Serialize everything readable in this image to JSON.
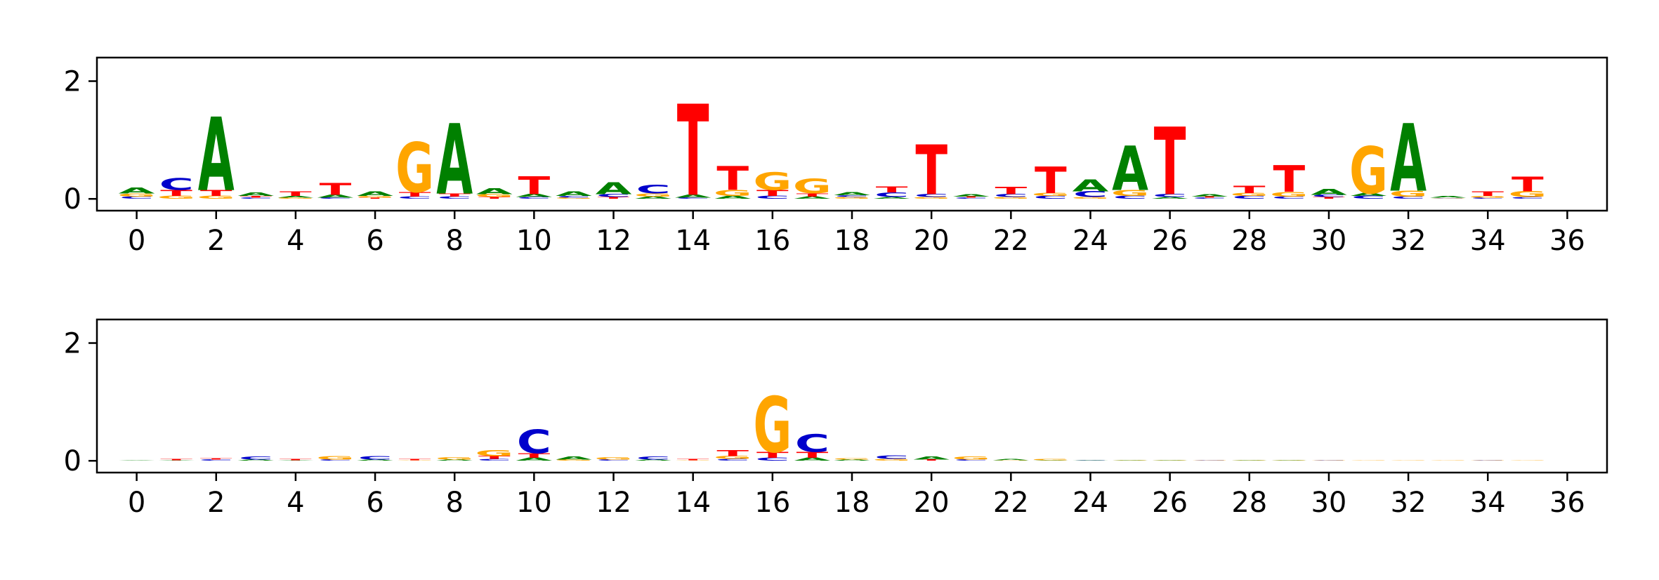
{
  "colors": {
    "A": "#008000",
    "C": "#0000cc",
    "G": "#ffa500",
    "T": "#ff0000"
  },
  "chart_data": [
    {
      "type": "sequence-logo",
      "xlim": [
        -1,
        37
      ],
      "ylim": [
        -0.2,
        2.4
      ],
      "xticks": [
        0,
        2,
        4,
        6,
        8,
        10,
        12,
        14,
        16,
        18,
        20,
        22,
        24,
        26,
        28,
        30,
        32,
        34,
        36
      ],
      "xtick_labels": [
        "0",
        "2",
        "4",
        "6",
        "8",
        "10",
        "12",
        "14",
        "16",
        "18",
        "20",
        "22",
        "24",
        "26",
        "28",
        "30",
        "32",
        "34",
        "36"
      ],
      "yticks": [
        0,
        2
      ],
      "ytick_labels": [
        "0",
        "2"
      ],
      "positions": [
        {
          "x": 0,
          "stack": [
            [
              "C",
              0.04
            ],
            [
              "G",
              0.05
            ],
            [
              "A",
              0.1
            ]
          ]
        },
        {
          "x": 1,
          "stack": [
            [
              "G",
              0.05
            ],
            [
              "T",
              0.1
            ],
            [
              "C",
              0.2
            ]
          ]
        },
        {
          "x": 2,
          "stack": [
            [
              "G",
              0.05
            ],
            [
              "T",
              0.1
            ],
            [
              "A",
              1.25
            ]
          ]
        },
        {
          "x": 3,
          "stack": [
            [
              "C",
              0.02
            ],
            [
              "T",
              0.03
            ],
            [
              "A",
              0.06
            ]
          ]
        },
        {
          "x": 4,
          "stack": [
            [
              "G",
              0.02
            ],
            [
              "A",
              0.03
            ],
            [
              "T",
              0.08
            ]
          ]
        },
        {
          "x": 5,
          "stack": [
            [
              "C",
              0.02
            ],
            [
              "A",
              0.05
            ],
            [
              "T",
              0.2
            ]
          ]
        },
        {
          "x": 6,
          "stack": [
            [
              "T",
              0.02
            ],
            [
              "G",
              0.03
            ],
            [
              "A",
              0.08
            ]
          ]
        },
        {
          "x": 7,
          "stack": [
            [
              "C",
              0.04
            ],
            [
              "T",
              0.08
            ],
            [
              "G",
              0.85
            ]
          ]
        },
        {
          "x": 8,
          "stack": [
            [
              "C",
              0.04
            ],
            [
              "T",
              0.05
            ],
            [
              "A",
              1.2
            ]
          ]
        },
        {
          "x": 9,
          "stack": [
            [
              "T",
              0.03
            ],
            [
              "G",
              0.05
            ],
            [
              "A",
              0.1
            ]
          ]
        },
        {
          "x": 10,
          "stack": [
            [
              "C",
              0.03
            ],
            [
              "A",
              0.05
            ],
            [
              "T",
              0.3
            ]
          ]
        },
        {
          "x": 11,
          "stack": [
            [
              "G",
              0.02
            ],
            [
              "C",
              0.03
            ],
            [
              "A",
              0.08
            ]
          ]
        },
        {
          "x": 12,
          "stack": [
            [
              "T",
              0.03
            ],
            [
              "C",
              0.05
            ],
            [
              "A",
              0.2
            ]
          ]
        },
        {
          "x": 13,
          "stack": [
            [
              "A",
              0.04
            ],
            [
              "G",
              0.05
            ],
            [
              "C",
              0.15
            ]
          ]
        },
        {
          "x": 14,
          "stack": [
            [
              "C",
              0.02
            ],
            [
              "A",
              0.05
            ],
            [
              "T",
              1.55
            ]
          ]
        },
        {
          "x": 15,
          "stack": [
            [
              "A",
              0.05
            ],
            [
              "G",
              0.1
            ],
            [
              "T",
              0.4
            ]
          ]
        },
        {
          "x": 16,
          "stack": [
            [
              "C",
              0.05
            ],
            [
              "T",
              0.1
            ],
            [
              "G",
              0.3
            ]
          ]
        },
        {
          "x": 17,
          "stack": [
            [
              "A",
              0.04
            ],
            [
              "T",
              0.05
            ],
            [
              "G",
              0.25
            ]
          ]
        },
        {
          "x": 18,
          "stack": [
            [
              "G",
              0.03
            ],
            [
              "C",
              0.03
            ],
            [
              "A",
              0.05
            ]
          ]
        },
        {
          "x": 19,
          "stack": [
            [
              "A",
              0.03
            ],
            [
              "C",
              0.08
            ],
            [
              "T",
              0.1
            ]
          ]
        },
        {
          "x": 20,
          "stack": [
            [
              "G",
              0.03
            ],
            [
              "C",
              0.05
            ],
            [
              "T",
              0.85
            ]
          ]
        },
        {
          "x": 21,
          "stack": [
            [
              "C",
              0.02
            ],
            [
              "T",
              0.02
            ],
            [
              "A",
              0.04
            ]
          ]
        },
        {
          "x": 22,
          "stack": [
            [
              "G",
              0.03
            ],
            [
              "C",
              0.05
            ],
            [
              "T",
              0.12
            ]
          ]
        },
        {
          "x": 23,
          "stack": [
            [
              "C",
              0.05
            ],
            [
              "G",
              0.05
            ],
            [
              "T",
              0.45
            ]
          ]
        },
        {
          "x": 24,
          "stack": [
            [
              "G",
              0.03
            ],
            [
              "C",
              0.1
            ],
            [
              "A",
              0.2
            ]
          ]
        },
        {
          "x": 25,
          "stack": [
            [
              "C",
              0.05
            ],
            [
              "G",
              0.1
            ],
            [
              "A",
              0.75
            ]
          ]
        },
        {
          "x": 26,
          "stack": [
            [
              "A",
              0.03
            ],
            [
              "C",
              0.05
            ],
            [
              "T",
              1.15
            ]
          ]
        },
        {
          "x": 27,
          "stack": [
            [
              "C",
              0.02
            ],
            [
              "T",
              0.02
            ],
            [
              "A",
              0.04
            ]
          ]
        },
        {
          "x": 28,
          "stack": [
            [
              "C",
              0.05
            ],
            [
              "G",
              0.05
            ],
            [
              "T",
              0.12
            ]
          ]
        },
        {
          "x": 29,
          "stack": [
            [
              "C",
              0.04
            ],
            [
              "G",
              0.08
            ],
            [
              "T",
              0.45
            ]
          ]
        },
        {
          "x": 30,
          "stack": [
            [
              "T",
              0.03
            ],
            [
              "C",
              0.04
            ],
            [
              "A",
              0.1
            ]
          ]
        },
        {
          "x": 31,
          "stack": [
            [
              "C",
              0.05
            ],
            [
              "A",
              0.05
            ],
            [
              "G",
              0.8
            ]
          ]
        },
        {
          "x": 32,
          "stack": [
            [
              "C",
              0.04
            ],
            [
              "G",
              0.1
            ],
            [
              "A",
              1.15
            ]
          ]
        },
        {
          "x": 33,
          "stack": [
            [
              "C",
              0.01
            ],
            [
              "G",
              0.01
            ],
            [
              "A",
              0.03
            ]
          ]
        },
        {
          "x": 34,
          "stack": [
            [
              "C",
              0.02
            ],
            [
              "G",
              0.03
            ],
            [
              "T",
              0.08
            ]
          ]
        },
        {
          "x": 35,
          "stack": [
            [
              "C",
              0.03
            ],
            [
              "G",
              0.1
            ],
            [
              "T",
              0.25
            ]
          ]
        }
      ]
    },
    {
      "type": "sequence-logo",
      "xlim": [
        -1,
        37
      ],
      "ylim": [
        -0.2,
        2.4
      ],
      "xticks": [
        0,
        2,
        4,
        6,
        8,
        10,
        12,
        14,
        16,
        18,
        20,
        22,
        24,
        26,
        28,
        30,
        32,
        34,
        36
      ],
      "xtick_labels": [
        "0",
        "2",
        "4",
        "6",
        "8",
        "10",
        "12",
        "14",
        "16",
        "18",
        "20",
        "22",
        "24",
        "26",
        "28",
        "30",
        "32",
        "34",
        "36"
      ],
      "yticks": [
        0,
        2
      ],
      "ytick_labels": [
        "0",
        "2"
      ],
      "positions": [
        {
          "x": 0,
          "stack": [
            [
              "A",
              0.01
            ]
          ]
        },
        {
          "x": 1,
          "stack": [
            [
              "A",
              0.01
            ],
            [
              "T",
              0.02
            ]
          ]
        },
        {
          "x": 2,
          "stack": [
            [
              "C",
              0.02
            ],
            [
              "T",
              0.02
            ]
          ]
        },
        {
          "x": 3,
          "stack": [
            [
              "A",
              0.02
            ],
            [
              "C",
              0.05
            ]
          ]
        },
        {
          "x": 4,
          "stack": [
            [
              "A",
              0.01
            ],
            [
              "T",
              0.02
            ]
          ]
        },
        {
          "x": 5,
          "stack": [
            [
              "C",
              0.02
            ],
            [
              "G",
              0.06
            ]
          ]
        },
        {
          "x": 6,
          "stack": [
            [
              "A",
              0.02
            ],
            [
              "C",
              0.06
            ]
          ]
        },
        {
          "x": 7,
          "stack": [
            [
              "G",
              0.01
            ],
            [
              "T",
              0.02
            ]
          ]
        },
        {
          "x": 8,
          "stack": [
            [
              "A",
              0.02
            ],
            [
              "G",
              0.04
            ]
          ]
        },
        {
          "x": 9,
          "stack": [
            [
              "C",
              0.03
            ],
            [
              "T",
              0.05
            ],
            [
              "G",
              0.1
            ]
          ]
        },
        {
          "x": 10,
          "stack": [
            [
              "A",
              0.05
            ],
            [
              "T",
              0.08
            ],
            [
              "C",
              0.4
            ]
          ]
        },
        {
          "x": 11,
          "stack": [
            [
              "G",
              0.02
            ],
            [
              "A",
              0.05
            ]
          ]
        },
        {
          "x": 12,
          "stack": [
            [
              "C",
              0.02
            ],
            [
              "G",
              0.04
            ]
          ]
        },
        {
          "x": 13,
          "stack": [
            [
              "A",
              0.02
            ],
            [
              "C",
              0.05
            ]
          ]
        },
        {
          "x": 14,
          "stack": [
            [
              "G",
              0.01
            ],
            [
              "T",
              0.02
            ]
          ]
        },
        {
          "x": 15,
          "stack": [
            [
              "C",
              0.03
            ],
            [
              "G",
              0.05
            ],
            [
              "T",
              0.1
            ]
          ]
        },
        {
          "x": 16,
          "stack": [
            [
              "C",
              0.05
            ],
            [
              "T",
              0.1
            ],
            [
              "G",
              0.95
            ]
          ]
        },
        {
          "x": 17,
          "stack": [
            [
              "A",
              0.05
            ],
            [
              "T",
              0.1
            ],
            [
              "C",
              0.3
            ]
          ]
        },
        {
          "x": 18,
          "stack": [
            [
              "A",
              0.02
            ],
            [
              "G",
              0.02
            ]
          ]
        },
        {
          "x": 19,
          "stack": [
            [
              "G",
              0.03
            ],
            [
              "C",
              0.06
            ]
          ]
        },
        {
          "x": 20,
          "stack": [
            [
              "T",
              0.02
            ],
            [
              "A",
              0.05
            ]
          ]
        },
        {
          "x": 21,
          "stack": [
            [
              "C",
              0.02
            ],
            [
              "G",
              0.05
            ]
          ]
        },
        {
          "x": 22,
          "stack": [
            [
              "G",
              0.01
            ],
            [
              "A",
              0.02
            ]
          ]
        },
        {
          "x": 23,
          "stack": [
            [
              "A",
              0.01
            ],
            [
              "G",
              0.02
            ]
          ]
        },
        {
          "x": 24,
          "stack": [
            [
              "C",
              0.01
            ],
            [
              "A",
              0.01
            ]
          ]
        },
        {
          "x": 25,
          "stack": [
            [
              "A",
              0.01
            ],
            [
              "G",
              0.01
            ]
          ]
        },
        {
          "x": 26,
          "stack": [
            [
              "G",
              0.01
            ],
            [
              "A",
              0.01
            ]
          ]
        },
        {
          "x": 27,
          "stack": [
            [
              "C",
              0.01
            ],
            [
              "G",
              0.01
            ]
          ]
        },
        {
          "x": 28,
          "stack": [
            [
              "A",
              0.01
            ],
            [
              "G",
              0.01
            ]
          ]
        },
        {
          "x": 29,
          "stack": [
            [
              "A",
              0.01
            ],
            [
              "G",
              0.01
            ]
          ]
        },
        {
          "x": 30,
          "stack": [
            [
              "C",
              0.01
            ],
            [
              "G",
              0.01
            ]
          ]
        },
        {
          "x": 31,
          "stack": [
            [
              "G",
              0.01
            ]
          ]
        },
        {
          "x": 32,
          "stack": [
            [
              "G",
              0.01
            ]
          ]
        },
        {
          "x": 33,
          "stack": [
            [
              "G",
              0.01
            ]
          ]
        },
        {
          "x": 34,
          "stack": [
            [
              "C",
              0.01
            ],
            [
              "G",
              0.01
            ]
          ]
        },
        {
          "x": 35,
          "stack": [
            [
              "G",
              0.01
            ]
          ]
        }
      ]
    }
  ]
}
